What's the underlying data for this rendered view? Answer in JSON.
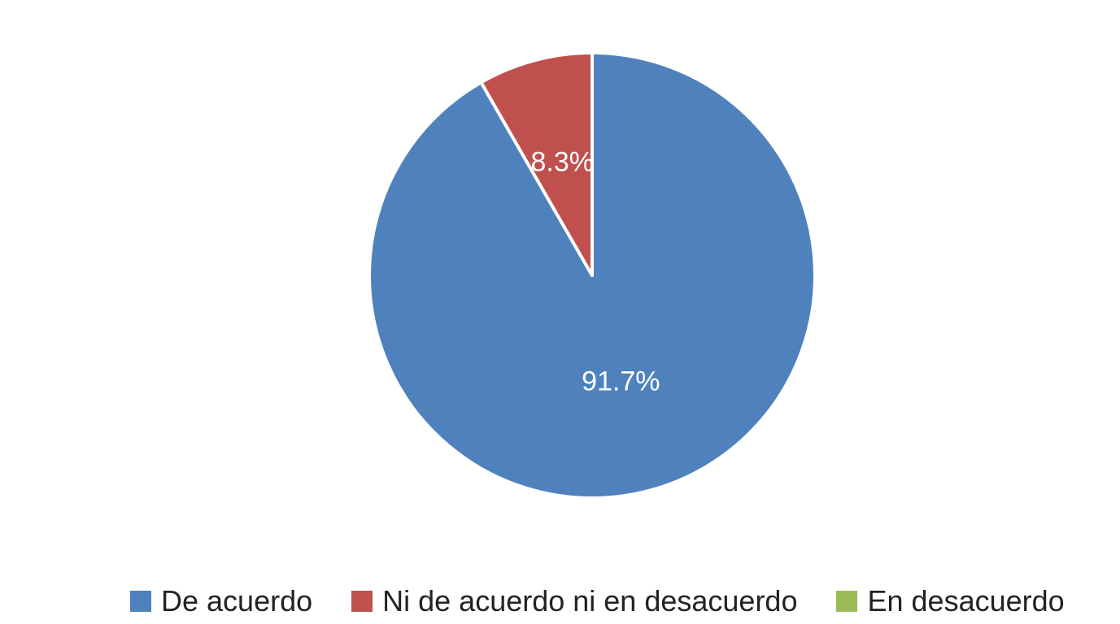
{
  "chart_data": {
    "type": "pie",
    "title": "",
    "legend_position": "bottom",
    "start_angle_deg": 0,
    "direction": "clockwise",
    "slices": [
      {
        "label": "De acuerdo",
        "value": 91.7,
        "display": "91.7%",
        "color": "#4F81BD"
      },
      {
        "label": "Ni de acuerdo ni en desacuerdo",
        "value": 8.3,
        "display": "8.3%",
        "color": "#C0504D"
      },
      {
        "label": "En desacuerdo",
        "value": 0,
        "display": "",
        "color": "#9BBB59"
      }
    ]
  }
}
